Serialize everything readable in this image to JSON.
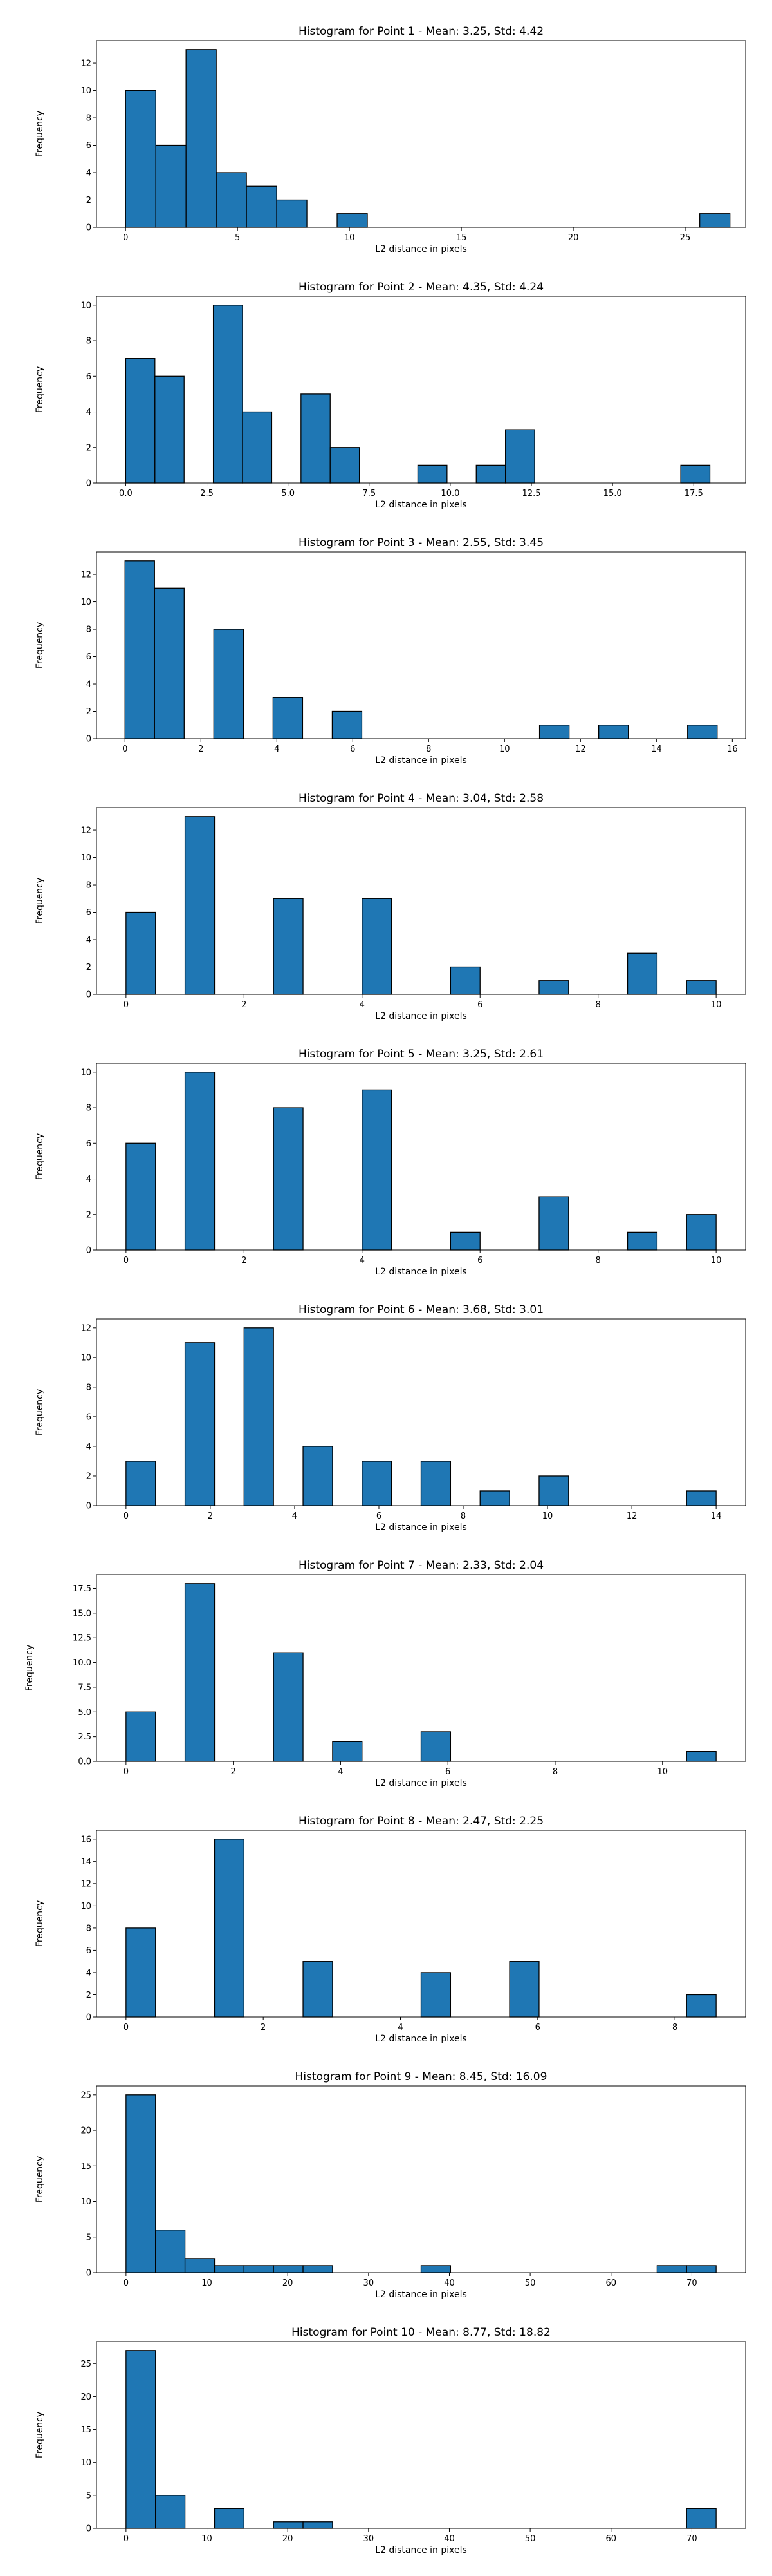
{
  "colors": {
    "bar_fill": "#1f77b4",
    "bar_edge": "#000000",
    "axes": "#000000",
    "background": "#ffffff"
  },
  "chart_data": [
    {
      "type": "bar",
      "title": "Histogram for Point 1 - Mean: 3.25, Std: 4.42",
      "xlabel": "L2 distance in pixels",
      "ylabel": "Frequency",
      "xlim": [
        -1.3,
        27.7
      ],
      "ylim": [
        0,
        13.65
      ],
      "xticks": [
        0,
        5,
        10,
        15,
        20,
        25
      ],
      "xtick_labels": [
        "0",
        "5",
        "10",
        "15",
        "20",
        "25"
      ],
      "yticks": [
        0,
        2,
        4,
        6,
        8,
        10,
        12
      ],
      "ytick_labels": [
        "0",
        "2",
        "4",
        "6",
        "8",
        "10",
        "12"
      ],
      "bins": [
        [
          0,
          1.35,
          10
        ],
        [
          1.35,
          2.7,
          6
        ],
        [
          2.7,
          4.05,
          13
        ],
        [
          4.05,
          5.4,
          4
        ],
        [
          5.4,
          6.75,
          3
        ],
        [
          6.75,
          8.1,
          2
        ],
        [
          9.45,
          10.8,
          1
        ],
        [
          25.65,
          27.0,
          1
        ]
      ]
    },
    {
      "type": "bar",
      "title": "Histogram for Point 2 - Mean: 4.35, Std: 4.24",
      "xlabel": "L2 distance in pixels",
      "ylabel": "Frequency",
      "xlim": [
        -0.9,
        19.1
      ],
      "ylim": [
        0,
        10.5
      ],
      "xticks": [
        0,
        2.5,
        5,
        7.5,
        10,
        12.5,
        15,
        17.5
      ],
      "xtick_labels": [
        "0.0",
        "2.5",
        "5.0",
        "7.5",
        "10.0",
        "12.5",
        "15.0",
        "17.5"
      ],
      "yticks": [
        0,
        2,
        4,
        6,
        8,
        10
      ],
      "ytick_labels": [
        "0",
        "2",
        "4",
        "6",
        "8",
        "10"
      ],
      "bins": [
        [
          0,
          0.9,
          7
        ],
        [
          0.9,
          1.8,
          6
        ],
        [
          2.7,
          3.6,
          10
        ],
        [
          3.6,
          4.5,
          4
        ],
        [
          5.4,
          6.3,
          5
        ],
        [
          6.3,
          7.2,
          2
        ],
        [
          9.0,
          9.9,
          1
        ],
        [
          10.8,
          11.7,
          1
        ],
        [
          11.7,
          12.6,
          3
        ],
        [
          17.1,
          18.0,
          1
        ]
      ]
    },
    {
      "type": "bar",
      "title": "Histogram for Point 3 - Mean: 2.55, Std: 3.45",
      "xlabel": "L2 distance in pixels",
      "ylabel": "Frequency",
      "xlim": [
        -0.75,
        16.35
      ],
      "ylim": [
        0,
        13.65
      ],
      "xticks": [
        0,
        2,
        4,
        6,
        8,
        10,
        12,
        14,
        16
      ],
      "xtick_labels": [
        "0",
        "2",
        "4",
        "6",
        "8",
        "10",
        "12",
        "14",
        "16"
      ],
      "yticks": [
        0,
        2,
        4,
        6,
        8,
        10,
        12
      ],
      "ytick_labels": [
        "0",
        "2",
        "4",
        "6",
        "8",
        "10",
        "12"
      ],
      "bins": [
        [
          0,
          0.78,
          13
        ],
        [
          0.78,
          1.56,
          11
        ],
        [
          2.34,
          3.12,
          8
        ],
        [
          3.9,
          4.68,
          3
        ],
        [
          5.46,
          6.24,
          2
        ],
        [
          10.92,
          11.7,
          1
        ],
        [
          12.48,
          13.26,
          1
        ],
        [
          14.82,
          15.6,
          1
        ]
      ]
    },
    {
      "type": "bar",
      "title": "Histogram for Point 4 - Mean: 3.04, Std: 2.58",
      "xlabel": "L2 distance in pixels",
      "ylabel": "Frequency",
      "xlim": [
        -0.5,
        10.5
      ],
      "ylim": [
        0,
        13.65
      ],
      "xticks": [
        0,
        2,
        4,
        6,
        8,
        10
      ],
      "xtick_labels": [
        "0",
        "2",
        "4",
        "6",
        "8",
        "10"
      ],
      "yticks": [
        0,
        2,
        4,
        6,
        8,
        10,
        12
      ],
      "ytick_labels": [
        "0",
        "2",
        "4",
        "6",
        "8",
        "10",
        "12"
      ],
      "bins": [
        [
          0,
          0.5,
          6
        ],
        [
          1.0,
          1.5,
          13
        ],
        [
          2.5,
          3.0,
          7
        ],
        [
          4.0,
          4.5,
          7
        ],
        [
          5.5,
          6.0,
          2
        ],
        [
          7.0,
          7.5,
          1
        ],
        [
          8.5,
          9.0,
          3
        ],
        [
          9.5,
          10.0,
          1
        ]
      ]
    },
    {
      "type": "bar",
      "title": "Histogram for Point 5 - Mean: 3.25, Std: 2.61",
      "xlabel": "L2 distance in pixels",
      "ylabel": "Frequency",
      "xlim": [
        -0.5,
        10.5
      ],
      "ylim": [
        0,
        10.5
      ],
      "xticks": [
        0,
        2,
        4,
        6,
        8,
        10
      ],
      "xtick_labels": [
        "0",
        "2",
        "4",
        "6",
        "8",
        "10"
      ],
      "yticks": [
        0,
        2,
        4,
        6,
        8,
        10
      ],
      "ytick_labels": [
        "0",
        "2",
        "4",
        "6",
        "8",
        "10"
      ],
      "bins": [
        [
          0,
          0.5,
          6
        ],
        [
          1.0,
          1.5,
          10
        ],
        [
          2.5,
          3.0,
          8
        ],
        [
          4.0,
          4.5,
          9
        ],
        [
          5.5,
          6.0,
          1
        ],
        [
          7.0,
          7.5,
          3
        ],
        [
          8.5,
          9.0,
          1
        ],
        [
          9.5,
          10.0,
          2
        ]
      ]
    },
    {
      "type": "bar",
      "title": "Histogram for Point 6 - Mean: 3.68, Std: 3.01",
      "xlabel": "L2 distance in pixels",
      "ylabel": "Frequency",
      "xlim": [
        -0.7,
        14.7
      ],
      "ylim": [
        0,
        12.6
      ],
      "xticks": [
        0,
        2,
        4,
        6,
        8,
        10,
        12,
        14
      ],
      "xtick_labels": [
        "0",
        "2",
        "4",
        "6",
        "8",
        "10",
        "12",
        "14"
      ],
      "yticks": [
        0,
        2,
        4,
        6,
        8,
        10,
        12
      ],
      "ytick_labels": [
        "0",
        "2",
        "4",
        "6",
        "8",
        "10",
        "12"
      ],
      "bins": [
        [
          0,
          0.7,
          3
        ],
        [
          1.4,
          2.1,
          11
        ],
        [
          2.8,
          3.5,
          12
        ],
        [
          4.2,
          4.9,
          4
        ],
        [
          5.6,
          6.3,
          3
        ],
        [
          7.0,
          7.7,
          3
        ],
        [
          8.4,
          9.1,
          1
        ],
        [
          9.8,
          10.5,
          2
        ],
        [
          13.3,
          14.0,
          1
        ]
      ]
    },
    {
      "type": "bar",
      "title": "Histogram for Point 7 - Mean: 2.33, Std: 2.04",
      "xlabel": "L2 distance in pixels",
      "ylabel": "Frequency",
      "xlim": [
        -0.55,
        11.55
      ],
      "ylim": [
        0,
        18.9
      ],
      "xticks": [
        0,
        2,
        4,
        6,
        8,
        10
      ],
      "xtick_labels": [
        "0",
        "2",
        "4",
        "6",
        "8",
        "10"
      ],
      "yticks": [
        0,
        2.5,
        5,
        7.5,
        10,
        12.5,
        15,
        17.5
      ],
      "ytick_labels": [
        "0.0",
        "2.5",
        "5.0",
        "7.5",
        "10.0",
        "12.5",
        "15.0",
        "17.5"
      ],
      "bins": [
        [
          0,
          0.55,
          5
        ],
        [
          1.1,
          1.65,
          18
        ],
        [
          2.75,
          3.3,
          11
        ],
        [
          3.85,
          4.4,
          2
        ],
        [
          5.5,
          6.05,
          3
        ],
        [
          10.45,
          11.0,
          1
        ]
      ]
    },
    {
      "type": "bar",
      "title": "Histogram for Point 8 - Mean: 2.47, Std: 2.25",
      "xlabel": "L2 distance in pixels",
      "ylabel": "Frequency",
      "xlim": [
        -0.43,
        9.03
      ],
      "ylim": [
        0,
        16.8
      ],
      "xticks": [
        0,
        2,
        4,
        6,
        8
      ],
      "xtick_labels": [
        "0",
        "2",
        "4",
        "6",
        "8"
      ],
      "yticks": [
        0,
        2,
        4,
        6,
        8,
        10,
        12,
        14,
        16
      ],
      "ytick_labels": [
        "0",
        "2",
        "4",
        "6",
        "8",
        "10",
        "12",
        "14",
        "16"
      ],
      "bins": [
        [
          0,
          0.43,
          8
        ],
        [
          1.29,
          1.72,
          16
        ],
        [
          2.58,
          3.01,
          5
        ],
        [
          4.3,
          4.73,
          4
        ],
        [
          5.59,
          6.02,
          5
        ],
        [
          8.17,
          8.6,
          2
        ]
      ]
    },
    {
      "type": "bar",
      "title": "Histogram for Point 9 - Mean: 8.45, Std: 16.09",
      "xlabel": "L2 distance in pixels",
      "ylabel": "Frequency",
      "xlim": [
        -3.65,
        76.65
      ],
      "ylim": [
        0,
        26.25
      ],
      "xticks": [
        0,
        10,
        20,
        30,
        40,
        50,
        60,
        70
      ],
      "xtick_labels": [
        "0",
        "10",
        "20",
        "30",
        "40",
        "50",
        "60",
        "70"
      ],
      "yticks": [
        0,
        5,
        10,
        15,
        20,
        25
      ],
      "ytick_labels": [
        "0",
        "5",
        "10",
        "15",
        "20",
        "25"
      ],
      "bins": [
        [
          0,
          3.65,
          25
        ],
        [
          3.65,
          7.3,
          6
        ],
        [
          7.3,
          10.95,
          2
        ],
        [
          10.95,
          14.6,
          1
        ],
        [
          14.6,
          18.25,
          1
        ],
        [
          18.25,
          21.9,
          1
        ],
        [
          21.9,
          25.55,
          1
        ],
        [
          36.5,
          40.15,
          1
        ],
        [
          65.7,
          69.35,
          1
        ],
        [
          69.35,
          73.0,
          1
        ]
      ]
    },
    {
      "type": "bar",
      "title": "Histogram for Point 10 - Mean: 8.77, Std: 18.82",
      "xlabel": "L2 distance in pixels",
      "ylabel": "Frequency",
      "xlim": [
        -3.65,
        76.65
      ],
      "ylim": [
        0,
        28.35
      ],
      "xticks": [
        0,
        10,
        20,
        30,
        40,
        50,
        60,
        70
      ],
      "xtick_labels": [
        "0",
        "10",
        "20",
        "30",
        "40",
        "50",
        "60",
        "70"
      ],
      "yticks": [
        0,
        5,
        10,
        15,
        20,
        25
      ],
      "ytick_labels": [
        "0",
        "5",
        "10",
        "15",
        "20",
        "25"
      ],
      "bins": [
        [
          0,
          3.65,
          27
        ],
        [
          3.65,
          7.3,
          5
        ],
        [
          10.95,
          14.6,
          3
        ],
        [
          18.25,
          21.9,
          1
        ],
        [
          21.9,
          25.55,
          1
        ],
        [
          69.35,
          73.0,
          3
        ]
      ]
    }
  ]
}
